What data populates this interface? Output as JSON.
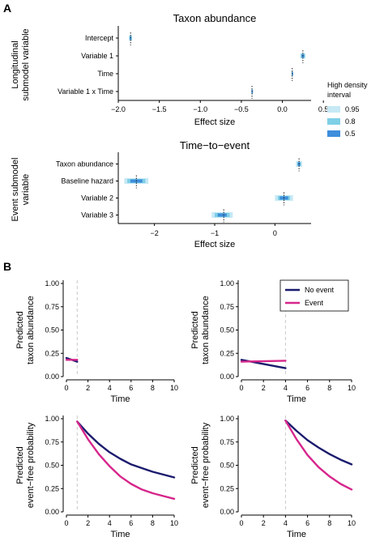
{
  "panels": {
    "a": "A",
    "b": "B"
  },
  "colors": {
    "ci95": "#c6e9f5",
    "ci80": "#7fcfe6",
    "ci50": "#3e8edc",
    "point": "#1f4fa0",
    "no_event": "#1b1b6e",
    "event": "#d6268b",
    "vline": "#c8c8c8"
  },
  "legend_a": {
    "title_lines": [
      "High density",
      "interval"
    ],
    "items": [
      {
        "label": "0.95",
        "color": "#c6e9f5"
      },
      {
        "label": "0.8",
        "color": "#7fcfe6"
      },
      {
        "label": "0.5",
        "color": "#3e8edc"
      }
    ]
  },
  "legend_b": {
    "items": [
      {
        "label": "No event",
        "color": "#1b1b6e"
      },
      {
        "label": "Event",
        "color": "#d6268b"
      }
    ]
  },
  "chart_data": [
    {
      "type": "interval",
      "title": "Taxon abundance",
      "xlabel": "Effect size",
      "ylabel_lines": [
        "Longitudinal",
        "submodel variable"
      ],
      "xlim": [
        -2.0,
        0.35
      ],
      "xticks": [
        -2.0,
        -1.5,
        -1.0,
        -0.5,
        0.0,
        0.5
      ],
      "xtick_labels": [
        "−2.0",
        "−1.5",
        "−1.0",
        "−0.5",
        "0.0",
        "0.5"
      ],
      "categories": [
        "Intercept",
        "Variable 1",
        "Time",
        "Variable 1 x Time"
      ],
      "estimates": [
        -1.85,
        0.25,
        0.12,
        -0.37
      ],
      "hdi95": [
        [
          -1.87,
          -1.83
        ],
        [
          0.22,
          0.28
        ],
        [
          0.11,
          0.13
        ],
        [
          -0.38,
          -0.36
        ]
      ],
      "hdi80": [
        [
          -1.865,
          -1.835
        ],
        [
          0.225,
          0.275
        ],
        [
          0.113,
          0.127
        ],
        [
          -0.377,
          -0.363
        ]
      ],
      "hdi50": [
        [
          -1.858,
          -1.842
        ],
        [
          0.235,
          0.265
        ],
        [
          0.116,
          0.124
        ],
        [
          -0.373,
          -0.367
        ]
      ]
    },
    {
      "type": "interval",
      "title": "Time−to−event",
      "xlabel": "Effect size",
      "ylabel_lines": [
        "Event submodel",
        "variable"
      ],
      "xlim": [
        -2.6,
        0.6
      ],
      "xticks": [
        -2,
        -1,
        0
      ],
      "xtick_labels": [
        "−2",
        "−1",
        "0"
      ],
      "categories": [
        "Taxon abundance",
        "Baseline hazard",
        "Variable 2",
        "Variable 3"
      ],
      "estimates": [
        0.4,
        -2.3,
        0.15,
        -0.85
      ],
      "hdi95": [
        [
          0.35,
          0.45
        ],
        [
          -2.5,
          -2.1
        ],
        [
          0.0,
          0.3
        ],
        [
          -1.05,
          -0.7
        ]
      ],
      "hdi80": [
        [
          0.37,
          0.43
        ],
        [
          -2.45,
          -2.15
        ],
        [
          0.05,
          0.25
        ],
        [
          -1.0,
          -0.75
        ]
      ],
      "hdi50": [
        [
          0.38,
          0.42
        ],
        [
          -2.4,
          -2.2
        ],
        [
          0.08,
          0.22
        ],
        [
          -0.95,
          -0.8
        ]
      ]
    },
    {
      "type": "line",
      "xlabel": "Time",
      "ylabel_lines": [
        "Predicted",
        "taxon abundance"
      ],
      "xlim": [
        0,
        10
      ],
      "ylim": [
        0,
        1
      ],
      "xticks": [
        0,
        2,
        4,
        6,
        8,
        10
      ],
      "xtick_labels": [
        "0",
        "2",
        "4",
        "6",
        "8",
        "10"
      ],
      "yticks": [
        0,
        0.25,
        0.5,
        0.75,
        1.0
      ],
      "ytick_labels": [
        "0.00",
        "0.25",
        "0.50",
        "0.75",
        "1.00"
      ],
      "event_time": 1,
      "series": [
        {
          "key": "no_event",
          "x": [
            0,
            1
          ],
          "y": [
            0.2,
            0.16
          ]
        },
        {
          "key": "event",
          "x": [
            0,
            1
          ],
          "y": [
            0.18,
            0.18
          ]
        }
      ]
    },
    {
      "type": "line",
      "xlabel": "Time",
      "ylabel_lines": [
        "Predicted",
        "taxon abundance"
      ],
      "xlim": [
        0,
        10
      ],
      "ylim": [
        0,
        1
      ],
      "xticks": [
        0,
        2,
        4,
        6,
        8,
        10
      ],
      "xtick_labels": [
        "0",
        "2",
        "4",
        "6",
        "8",
        "10"
      ],
      "yticks": [
        0,
        0.25,
        0.5,
        0.75,
        1.0
      ],
      "ytick_labels": [
        "0.00",
        "0.25",
        "0.50",
        "0.75",
        "1.00"
      ],
      "event_time": 4,
      "series": [
        {
          "key": "no_event",
          "x": [
            0,
            4
          ],
          "y": [
            0.18,
            0.09
          ]
        },
        {
          "key": "event",
          "x": [
            0,
            4
          ],
          "y": [
            0.16,
            0.17
          ]
        }
      ]
    },
    {
      "type": "line",
      "xlabel": "Time",
      "ylabel_lines": [
        "Predicted",
        "event−free probability"
      ],
      "xlim": [
        0,
        10
      ],
      "ylim": [
        0,
        1
      ],
      "xticks": [
        0,
        2,
        4,
        6,
        8,
        10
      ],
      "xtick_labels": [
        "0",
        "2",
        "4",
        "6",
        "8",
        "10"
      ],
      "yticks": [
        0,
        0.25,
        0.5,
        0.75,
        1.0
      ],
      "ytick_labels": [
        "0.00",
        "0.25",
        "0.50",
        "0.75",
        "1.00"
      ],
      "event_time": 1,
      "series": [
        {
          "key": "no_event",
          "x": [
            1,
            2,
            3,
            4,
            5,
            6,
            7,
            8,
            9,
            10
          ],
          "y": [
            0.97,
            0.84,
            0.73,
            0.64,
            0.57,
            0.51,
            0.47,
            0.43,
            0.4,
            0.37
          ]
        },
        {
          "key": "event",
          "x": [
            1,
            2,
            3,
            4,
            5,
            6,
            7,
            8,
            9,
            10
          ],
          "y": [
            0.97,
            0.78,
            0.62,
            0.49,
            0.38,
            0.3,
            0.24,
            0.2,
            0.17,
            0.14
          ]
        }
      ]
    },
    {
      "type": "line",
      "xlabel": "Time",
      "ylabel_lines": [
        "Predicted",
        "event−free probability"
      ],
      "xlim": [
        0,
        10
      ],
      "ylim": [
        0,
        1
      ],
      "xticks": [
        0,
        2,
        4,
        6,
        8,
        10
      ],
      "xtick_labels": [
        "0",
        "2",
        "4",
        "6",
        "8",
        "10"
      ],
      "yticks": [
        0,
        0.25,
        0.5,
        0.75,
        1.0
      ],
      "ytick_labels": [
        "0.00",
        "0.25",
        "0.50",
        "0.75",
        "1.00"
      ],
      "event_time": 4,
      "series": [
        {
          "key": "no_event",
          "x": [
            4,
            5,
            6,
            7,
            8,
            9,
            10
          ],
          "y": [
            0.98,
            0.87,
            0.77,
            0.69,
            0.62,
            0.56,
            0.51
          ]
        },
        {
          "key": "event",
          "x": [
            4,
            5,
            6,
            7,
            8,
            9,
            10
          ],
          "y": [
            0.98,
            0.78,
            0.61,
            0.48,
            0.38,
            0.3,
            0.24
          ]
        }
      ]
    }
  ]
}
